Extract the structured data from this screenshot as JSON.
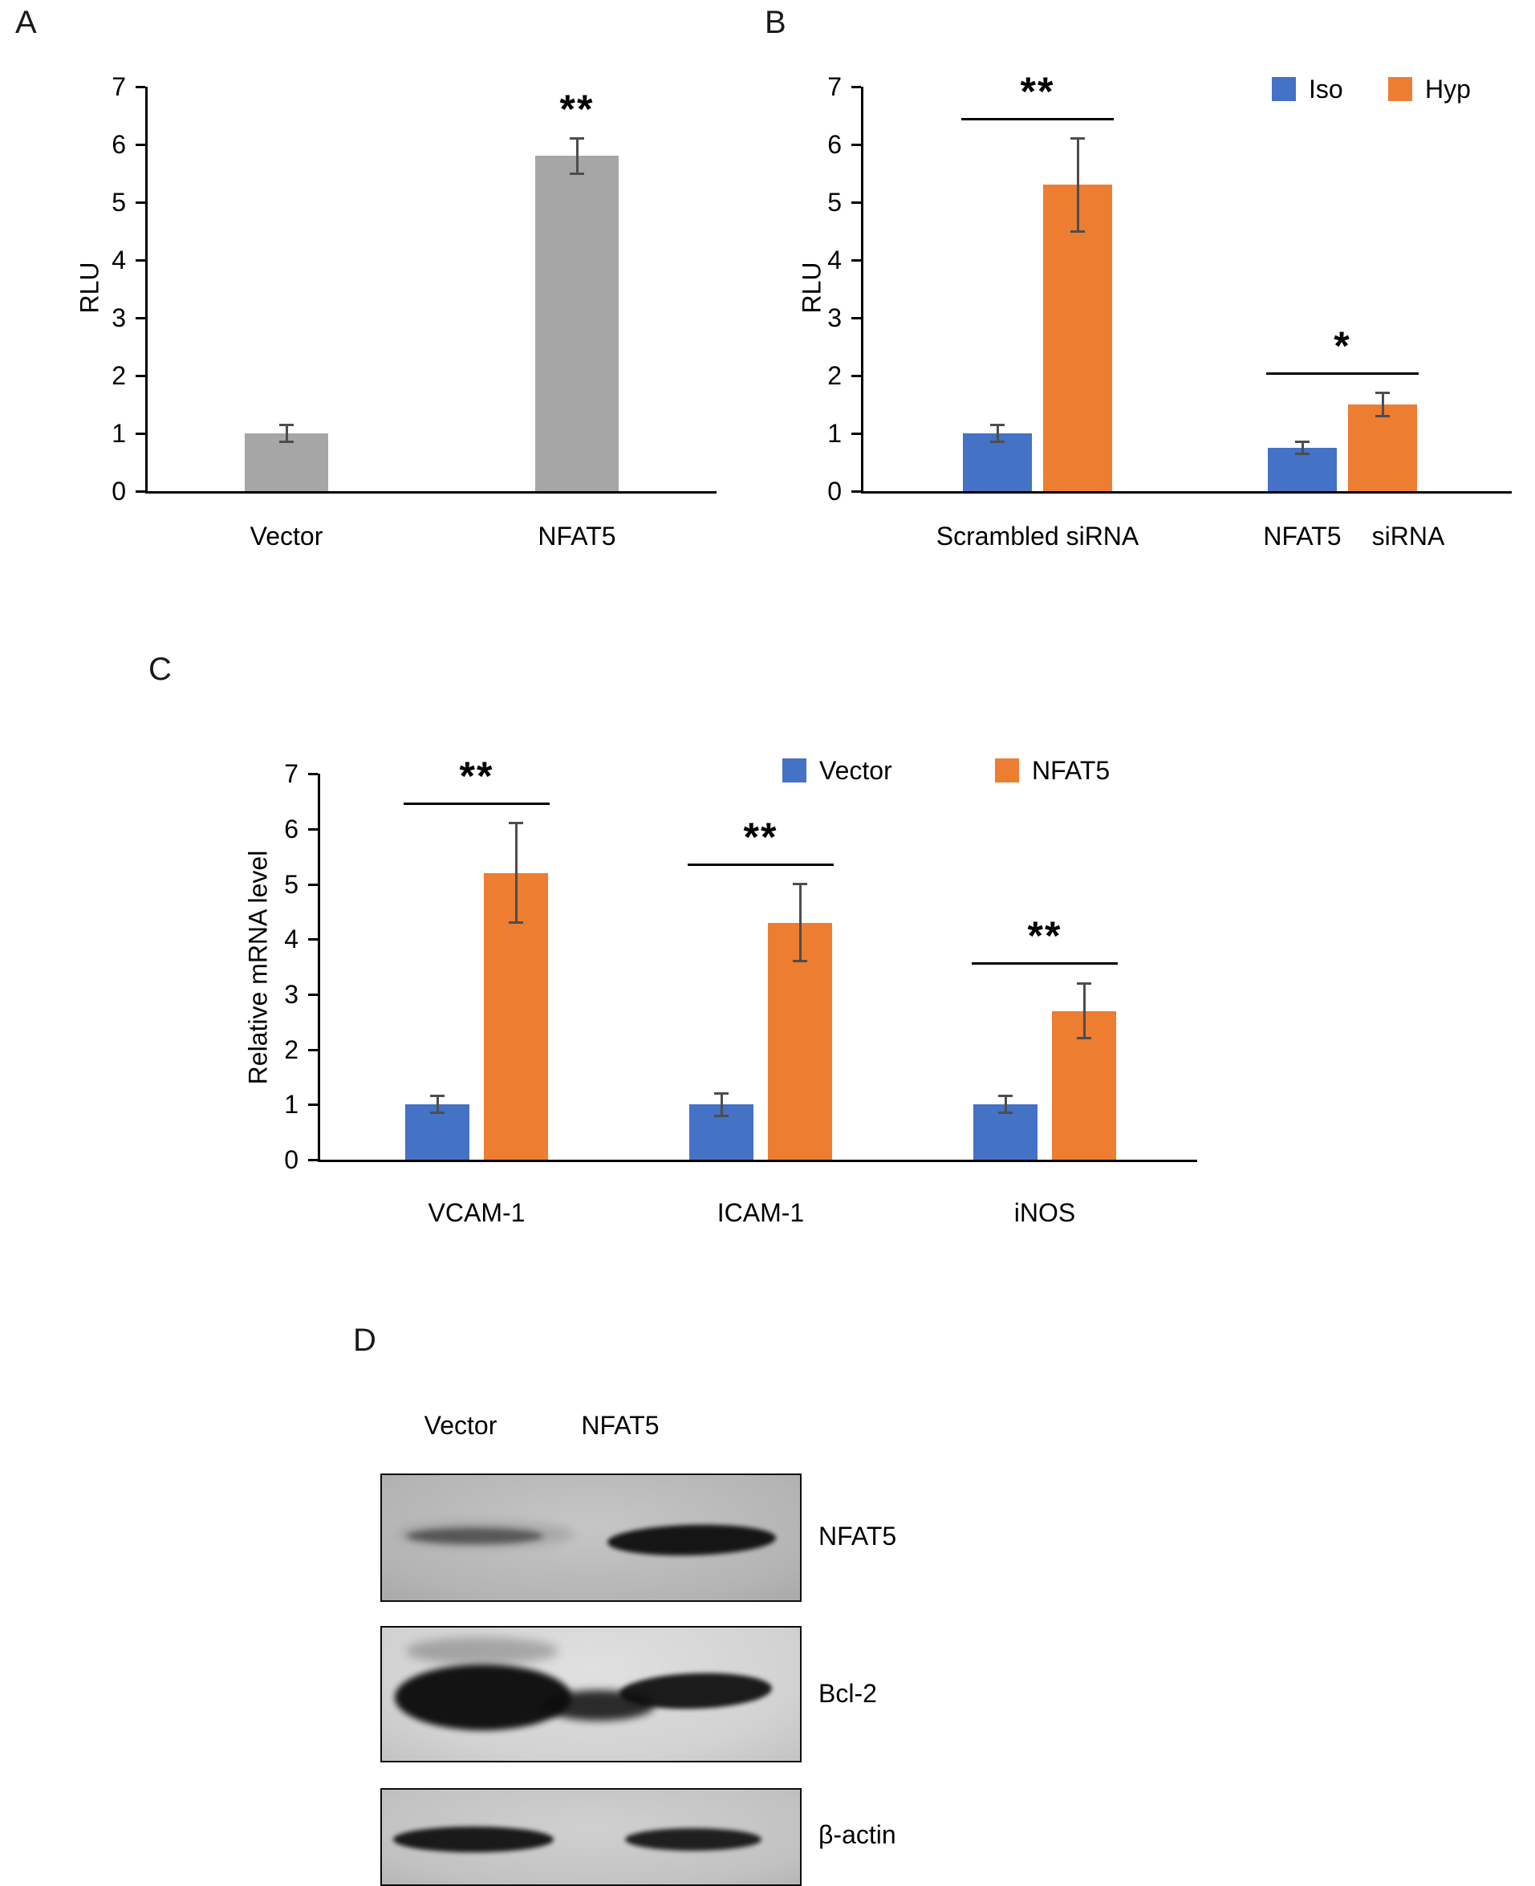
{
  "figure": {
    "panels": {
      "A": {
        "label": "A"
      },
      "B": {
        "label": "B"
      },
      "C": {
        "label": "C"
      },
      "D": {
        "label": "D"
      }
    }
  },
  "chart_data": [
    {
      "id": "A",
      "type": "bar",
      "title": "",
      "ylabel": "RLU",
      "ylim": [
        0,
        7
      ],
      "yticks": [
        0,
        1,
        2,
        3,
        4,
        5,
        6,
        7
      ],
      "categories": [
        "Vector",
        "NFAT5"
      ],
      "values": [
        1.0,
        5.8
      ],
      "errors": [
        0.15,
        0.3
      ],
      "bar_color": "#a6a6a6",
      "annotations": [
        {
          "text": "**",
          "target": "NFAT5"
        }
      ],
      "grid": false,
      "legend_position": "none"
    },
    {
      "id": "B",
      "type": "grouped-bar",
      "title": "",
      "ylabel": "RLU",
      "ylim": [
        0,
        7
      ],
      "yticks": [
        0,
        1,
        2,
        3,
        4,
        5,
        6,
        7
      ],
      "categories": [
        "Scrambled siRNA",
        "NFAT5 siRNA"
      ],
      "xtick_display": [
        "Scrambled siRNA",
        "NFAT5",
        "siRNA"
      ],
      "series": [
        {
          "name": "Iso",
          "color": "#4472c4",
          "values": [
            1.0,
            0.75
          ],
          "errors": [
            0.15,
            0.1
          ]
        },
        {
          "name": "Hyp",
          "color": "#ed7d31",
          "values": [
            5.3,
            1.5
          ],
          "errors": [
            0.8,
            0.2
          ]
        }
      ],
      "significance": [
        {
          "group": 0,
          "text": "**"
        },
        {
          "group": 1,
          "text": "*"
        }
      ],
      "grid": false,
      "legend_position": "top-right"
    },
    {
      "id": "C",
      "type": "grouped-bar",
      "title": "",
      "ylabel": "Relative mRNA level",
      "ylim": [
        0,
        7
      ],
      "yticks": [
        0,
        1,
        2,
        3,
        4,
        5,
        6,
        7
      ],
      "categories": [
        "VCAM-1",
        "ICAM-1",
        "iNOS"
      ],
      "series": [
        {
          "name": "Vector",
          "color": "#4472c4",
          "values": [
            1.0,
            1.0,
            1.0
          ],
          "errors": [
            0.15,
            0.2,
            0.15
          ]
        },
        {
          "name": "NFAT5",
          "color": "#ed7d31",
          "values": [
            5.2,
            4.3,
            2.7
          ],
          "errors": [
            0.9,
            0.7,
            0.5
          ]
        }
      ],
      "significance": [
        {
          "group": 0,
          "text": "**"
        },
        {
          "group": 1,
          "text": "**"
        },
        {
          "group": 2,
          "text": "**"
        }
      ],
      "grid": false,
      "legend_position": "top-right"
    }
  ],
  "western_blot": {
    "column_labels": [
      "Vector",
      "NFAT5"
    ],
    "blots": [
      {
        "label": "NFAT5"
      },
      {
        "label": "Bcl-2"
      },
      {
        "label": "β-actin"
      }
    ]
  }
}
